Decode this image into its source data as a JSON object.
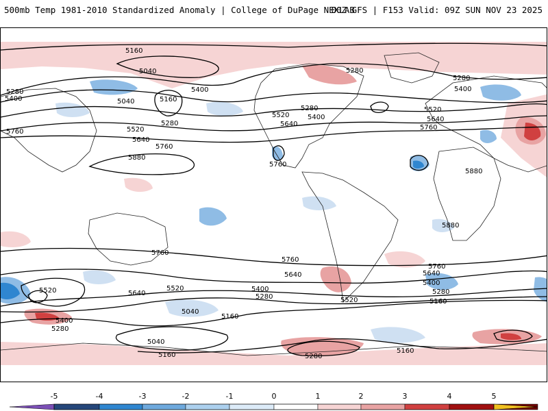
{
  "header": {
    "title": "500mb Temp 1981-2010 Standardized Anomaly | College of DuPage NEXLAB",
    "run_info": "00Z GFS | F153 Valid: 09Z SUN NOV 23 2025"
  },
  "map": {
    "contour_labels": [
      "5160",
      "5040",
      "5280",
      "5400",
      "5040",
      "5160",
      "5280",
      "5400",
      "5520",
      "5640",
      "5760",
      "5880",
      "5280",
      "5520",
      "5640",
      "5400",
      "5280",
      "5760",
      "5400",
      "5280",
      "5520",
      "5640",
      "5760",
      "5880",
      "5880",
      "5760",
      "5760",
      "5640",
      "5760",
      "5520",
      "5640",
      "5400",
      "5280",
      "5520",
      "5040",
      "5160",
      "5400",
      "5280",
      "5040",
      "5160",
      "5280",
      "5160",
      "5640",
      "5520",
      "5400",
      "5280",
      "5160",
      "5760"
    ],
    "colors": {
      "warm_light": "#f6d4d4",
      "warm_mid": "#e8a3a3",
      "warm_strong": "#d04040",
      "cool_light": "#cfe0f2",
      "cool_mid": "#8fbce5",
      "cool_strong": "#2f86d0",
      "contour": "#000000",
      "coast": "#222222"
    }
  },
  "legend": {
    "ticks": [
      "-5",
      "-4",
      "-3",
      "-2",
      "-1",
      "0",
      "1",
      "2",
      "3",
      "4",
      "5"
    ],
    "colors": [
      "#7b4fb5",
      "#25477a",
      "#2f86d0",
      "#6ea9dd",
      "#acd0ee",
      "#dcebf8",
      "#ffffff",
      "#f6d4d4",
      "#e8a3a3",
      "#d04040",
      "#a01010",
      "#6e0000",
      "#f0c020"
    ]
  }
}
